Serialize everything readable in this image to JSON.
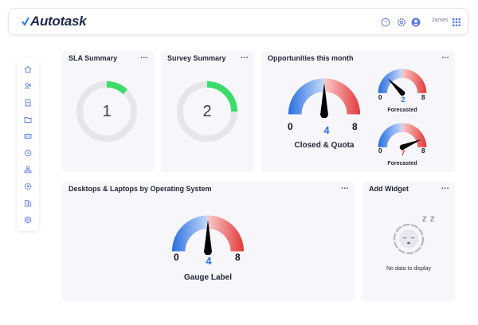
{
  "header": {
    "logo": "Autotask",
    "user_name": "James",
    "icons": [
      "help-icon",
      "settings-icon",
      "user-avatar-icon",
      "apps-grid-icon"
    ]
  },
  "sidebar": {
    "items": [
      {
        "icon": "home-icon"
      },
      {
        "icon": "contacts-icon"
      },
      {
        "icon": "document-icon"
      },
      {
        "icon": "folder-icon"
      },
      {
        "icon": "ticket-icon"
      },
      {
        "icon": "clock-icon"
      },
      {
        "icon": "organization-icon"
      },
      {
        "icon": "gear-people-icon"
      },
      {
        "icon": "building-icon"
      },
      {
        "icon": "settings-cog-icon"
      }
    ]
  },
  "widgets": {
    "sla": {
      "title": "SLA Summary",
      "menu": "...",
      "value": "1",
      "fill_percent": 12
    },
    "survey": {
      "title": "Survey Summary",
      "menu": "...",
      "value": "2",
      "fill_percent": 25
    },
    "opportunities": {
      "title": "Opportunities this month",
      "menu": "...",
      "main": {
        "min": "0",
        "value": "4",
        "max": "8",
        "label": "Closed & Quota"
      },
      "gauge2": {
        "min": "0",
        "value": "2",
        "max": "8",
        "label": "Forecasted"
      },
      "gauge3": {
        "min": "0",
        "value": "7",
        "max": "8",
        "label": "Forecasted"
      }
    },
    "desktops": {
      "title": "Desktops & Laptops by Operating System",
      "menu": "...",
      "gauge": {
        "min": "0",
        "value": "4",
        "max": "8",
        "label": "Gauge Label"
      }
    },
    "add_widget": {
      "title": "Add Widget",
      "menu": "...",
      "empty_text": "No data to display",
      "sleep_text": "Z Z"
    }
  },
  "colors": {
    "accent_green": "#3ddc6a",
    "ring_gray": "#e6e6ea",
    "gauge_blue": "#2a6fe0",
    "gauge_red": "#e23a3a",
    "value_blue": "#2a6fe0",
    "value_red": "#e23a3a"
  }
}
